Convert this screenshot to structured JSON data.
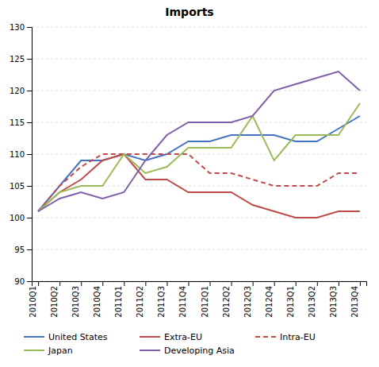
{
  "chart_data": {
    "type": "line",
    "title": "Imports",
    "categories": [
      "2010Q1",
      "2010Q2",
      "2010Q3",
      "2010Q4",
      "2011Q1",
      "2011Q2",
      "2011Q3",
      "2011Q4",
      "2012Q1",
      "2012Q2",
      "2012Q3",
      "2012Q4",
      "2013Q1",
      "2013Q2",
      "2013Q3",
      "2013Q4"
    ],
    "series": [
      {
        "name": "United States",
        "color": "#4472C4",
        "line_style": "solid",
        "values": [
          101,
          105,
          109,
          109,
          110,
          109,
          110,
          112,
          112,
          113,
          113,
          113,
          112,
          112,
          114,
          116
        ]
      },
      {
        "name": "Extra-EU",
        "color": "#BE4B48",
        "line_style": "solid",
        "values": [
          101,
          104,
          106,
          109,
          110,
          106,
          106,
          104,
          104,
          104,
          102,
          101,
          100,
          100,
          101,
          101
        ]
      },
      {
        "name": "Intra-EU",
        "color": "#BE4B48",
        "line_style": "dashed",
        "values": [
          101,
          105,
          108,
          110,
          110,
          110,
          110,
          110,
          107,
          107,
          106,
          105,
          105,
          105,
          107,
          107
        ]
      },
      {
        "name": "Japan",
        "color": "#9BBB59",
        "line_style": "solid",
        "values": [
          101,
          104,
          105,
          105,
          110,
          107,
          108,
          111,
          111,
          111,
          116,
          109,
          113,
          113,
          113,
          118
        ]
      },
      {
        "name": "Developing Asia",
        "color": "#7F5FA8",
        "line_style": "solid",
        "values": [
          101,
          103,
          104,
          103,
          104,
          109,
          113,
          115,
          115,
          115,
          116,
          120,
          121,
          122,
          123,
          120
        ]
      }
    ],
    "ylim": [
      90,
      130
    ],
    "yticks": [
      90,
      95,
      100,
      105,
      110,
      115,
      120,
      125,
      130
    ],
    "grid": true,
    "legend": "bottom"
  }
}
